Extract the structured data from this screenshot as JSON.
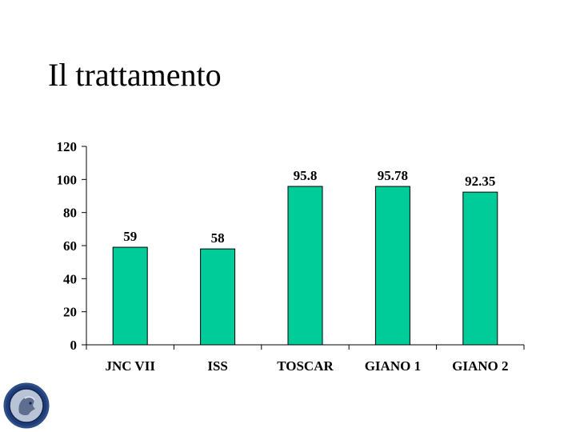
{
  "slide": {
    "title": "Il trattamento"
  },
  "colors": {
    "bar_fill": "#00CC99",
    "bar_stroke": "#000000",
    "axis": "#000000",
    "logo_ring": "#2E4E88",
    "logo_bg": "#1F3C78"
  },
  "chart_data": {
    "type": "bar",
    "title": "",
    "xlabel": "",
    "ylabel": "",
    "categories": [
      "JNC VII",
      "ISS",
      "TOSCAR",
      "GIANO 1",
      "GIANO 2"
    ],
    "values": [
      59,
      58,
      95.8,
      95.78,
      92.35
    ],
    "value_labels": [
      "59",
      "58",
      "95.8",
      "95.78",
      "92.35"
    ],
    "ylim": [
      0,
      120
    ],
    "yticks": [
      "0",
      "20",
      "40",
      "60",
      "80",
      "100",
      "120"
    ],
    "grid": false,
    "legend": "none"
  }
}
